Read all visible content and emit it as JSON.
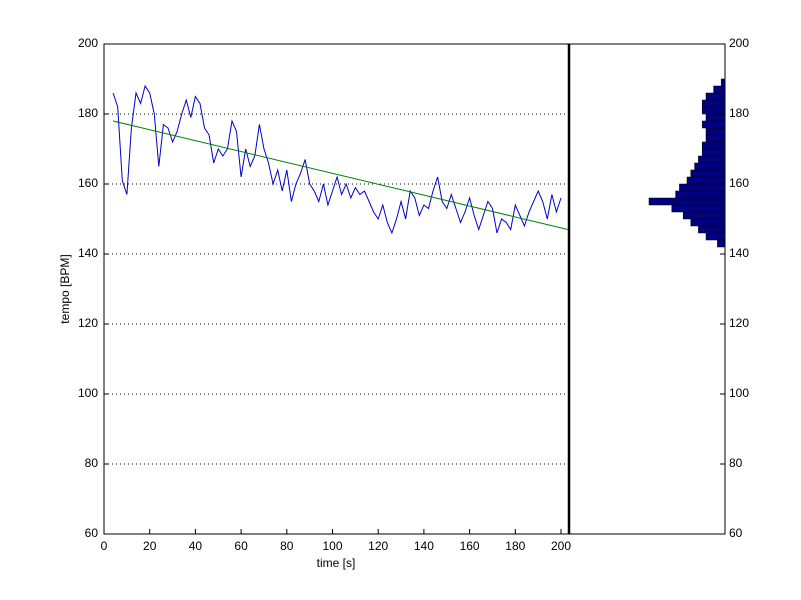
{
  "chart_data": [
    {
      "type": "line",
      "xlabel": "time [s]",
      "ylabel": "tempo [BPM]",
      "x": [
        4,
        6,
        8,
        10,
        12,
        14,
        16,
        18,
        20,
        22,
        24,
        26,
        28,
        30,
        32,
        34,
        36,
        38,
        40,
        42,
        44,
        46,
        48,
        50,
        52,
        54,
        56,
        58,
        60,
        62,
        64,
        66,
        68,
        70,
        72,
        74,
        76,
        78,
        80,
        82,
        84,
        86,
        88,
        90,
        92,
        94,
        96,
        98,
        100,
        102,
        104,
        106,
        108,
        110,
        112,
        114,
        116,
        118,
        120,
        122,
        124,
        126,
        128,
        130,
        132,
        134,
        136,
        138,
        140,
        142,
        144,
        146,
        148,
        150,
        152,
        154,
        156,
        158,
        160,
        162,
        164,
        166,
        168,
        170,
        172,
        174,
        176,
        178,
        180,
        182,
        184,
        186,
        188,
        190,
        192,
        194,
        196,
        198,
        200
      ],
      "series": [
        {
          "color": "#0000cc",
          "values": [
            186,
            182,
            161,
            157,
            176,
            186,
            183,
            188,
            186,
            180,
            165,
            177,
            176,
            172,
            175,
            180,
            184,
            179,
            185,
            183,
            176,
            174,
            166,
            170,
            168,
            170,
            178,
            175,
            162,
            170,
            165,
            168,
            177,
            170,
            166,
            160,
            164,
            158,
            164,
            155,
            160,
            163,
            167,
            160,
            158,
            155,
            160,
            154,
            158,
            162,
            157,
            160,
            156,
            159,
            157,
            158,
            155,
            152,
            150,
            154,
            149,
            146,
            150,
            155,
            150,
            158,
            156,
            151,
            154,
            153,
            158,
            162,
            155,
            153,
            157,
            153,
            149,
            152,
            156,
            151,
            147,
            151,
            155,
            153,
            146,
            150,
            149,
            147,
            154,
            151,
            148,
            152,
            155,
            158,
            155,
            150,
            157,
            152,
            156
          ]
        },
        {
          "color": "#008000",
          "x": [
            4,
            203
          ],
          "values": [
            178,
            147
          ]
        }
      ],
      "xlim": [
        0,
        203.5
      ],
      "xticks": [
        0,
        20,
        40,
        60,
        80,
        100,
        120,
        140,
        160,
        180,
        200
      ],
      "ylim": [
        60,
        200
      ],
      "yticks": [
        60,
        80,
        100,
        120,
        140,
        160,
        180,
        200
      ],
      "grid": true
    },
    {
      "type": "histogram",
      "orientation": "horizontal",
      "color": "#000080",
      "bins": [
        142,
        144,
        146,
        148,
        150,
        152,
        154,
        156,
        158,
        160,
        162,
        164,
        166,
        168,
        170,
        172,
        174,
        176,
        178,
        180,
        182,
        184,
        186,
        188,
        190
      ],
      "counts": [
        2,
        5,
        7,
        9,
        11,
        14,
        20,
        13,
        12,
        10,
        9,
        8,
        7,
        6,
        6,
        5,
        5,
        6,
        5,
        6,
        6,
        5,
        3,
        1
      ],
      "ylim": [
        60,
        200
      ],
      "yticks": [
        60,
        80,
        100,
        120,
        140,
        160,
        180,
        200
      ]
    }
  ]
}
